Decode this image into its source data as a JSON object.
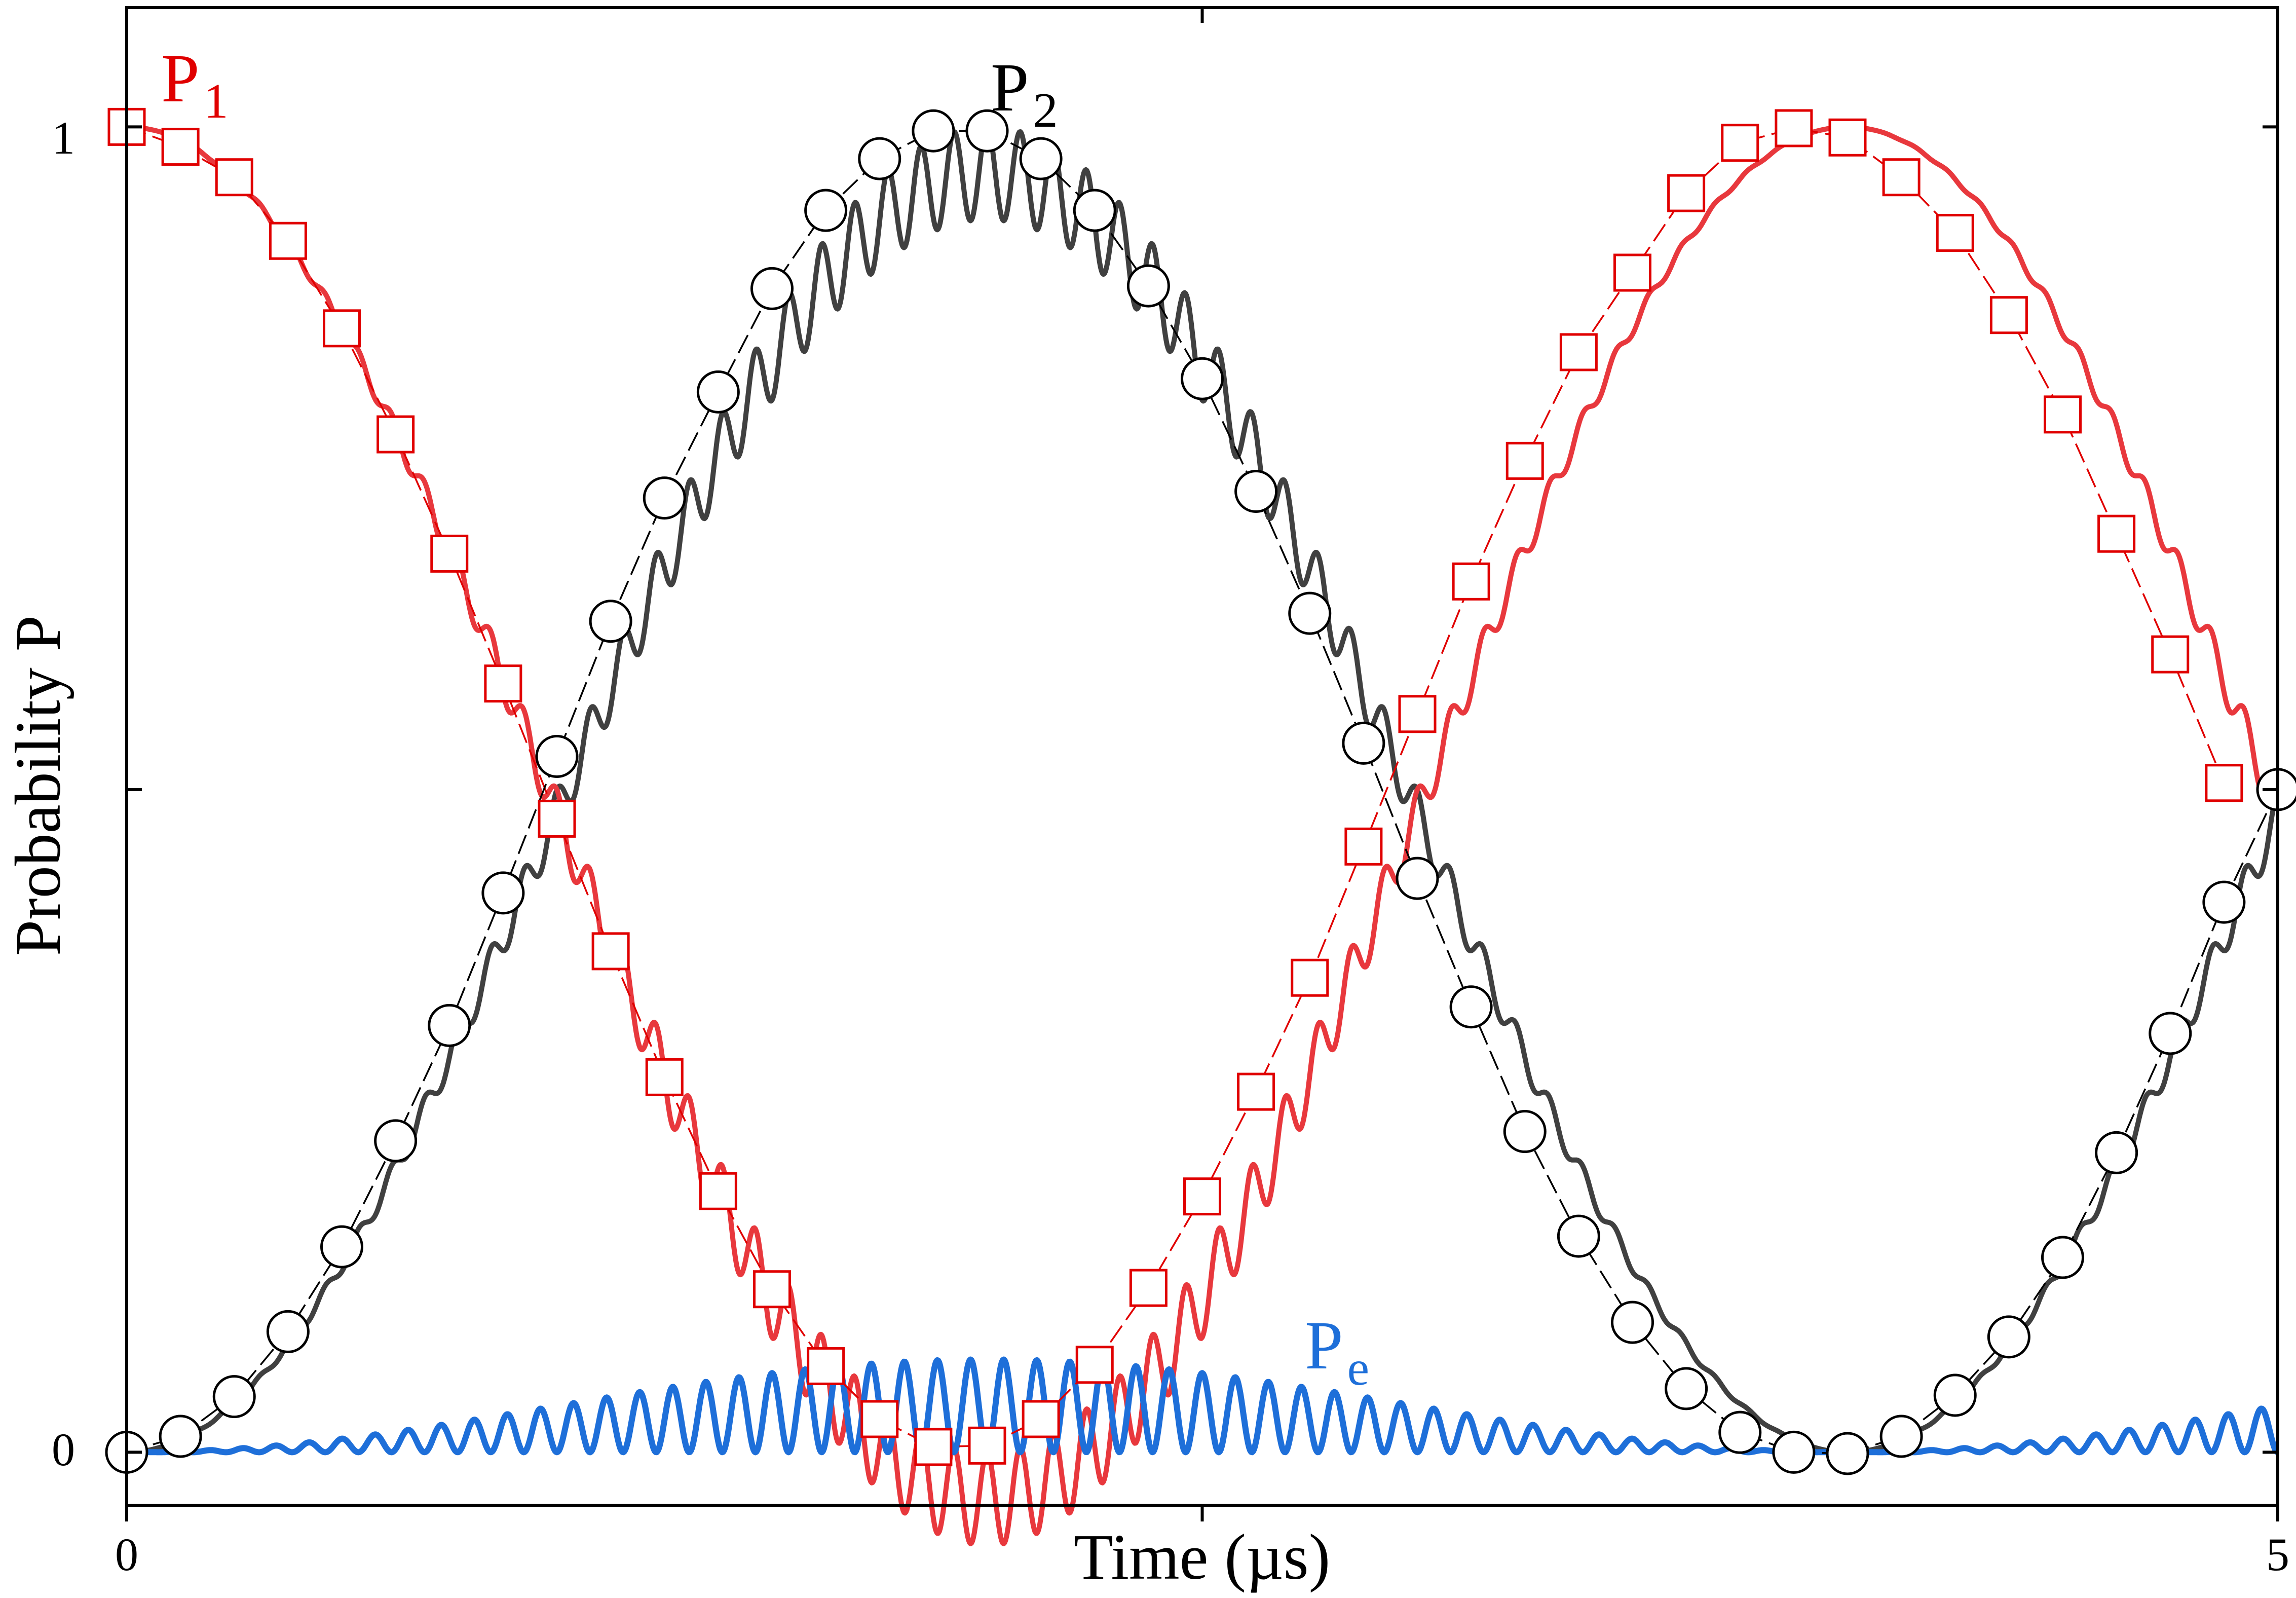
{
  "chart_data": {
    "type": "line",
    "xlabel": "Time   (µs)",
    "ylabel": "Probability P",
    "xlim": [
      0,
      5
    ],
    "ylim": [
      -0.04,
      1.09
    ],
    "xticks": [
      "0",
      "5"
    ],
    "yticks": [
      "0",
      "1"
    ],
    "grid": false,
    "colors": {
      "P1": "#e8383d",
      "P2": "#404040",
      "Pe": "#1e6fd9",
      "P1_markers": "#e00000",
      "P2_markers": "#000000"
    },
    "series_labels": {
      "P1": {
        "main": "P",
        "sub": "1"
      },
      "P2": {
        "main": "P",
        "sub": "2"
      },
      "Pe": {
        "main": "P",
        "sub": "e"
      }
    },
    "curve_model": {
      "rabi_period_us": 8.0,
      "p1_phase_us": 0,
      "fast_oscillations_per_us": 13,
      "pe_peak": 0.07,
      "samples": 2200
    },
    "series": [
      {
        "name": "P1",
        "style": "open-squares",
        "x": [
          0,
          0.125,
          0.25,
          0.375,
          0.5,
          0.625,
          0.75,
          0.875,
          1.0,
          1.125,
          1.25,
          1.375,
          1.5,
          1.625,
          1.75,
          1.875,
          2.0,
          2.125,
          2.25,
          2.375,
          2.5,
          2.625,
          2.75,
          2.875,
          3.0,
          3.125,
          3.25,
          3.375,
          3.5,
          3.625,
          3.75,
          3.875,
          4.0,
          4.125,
          4.25,
          4.375,
          4.5,
          4.625,
          4.75,
          4.875
        ],
        "y": [
          1.0,
          0.985,
          0.962,
          0.914,
          0.848,
          0.768,
          0.678,
          0.58,
          0.478,
          0.378,
          0.283,
          0.197,
          0.123,
          0.065,
          0.025,
          0.004,
          0.005,
          0.025,
          0.066,
          0.124,
          0.193,
          0.272,
          0.358,
          0.457,
          0.557,
          0.657,
          0.748,
          0.83,
          0.89,
          0.95,
          0.988,
          0.999,
          0.992,
          0.962,
          0.92,
          0.858,
          0.783,
          0.693,
          0.602,
          0.505
        ]
      },
      {
        "name": "P2",
        "style": "open-circles",
        "x": [
          0,
          0.125,
          0.25,
          0.375,
          0.5,
          0.625,
          0.75,
          0.875,
          1.0,
          1.125,
          1.25,
          1.375,
          1.5,
          1.625,
          1.75,
          1.875,
          2.0,
          2.125,
          2.25,
          2.375,
          2.5,
          2.625,
          2.75,
          2.875,
          3.0,
          3.125,
          3.25,
          3.375,
          3.5,
          3.625,
          3.75,
          3.875,
          4.0,
          4.125,
          4.25,
          4.375,
          4.5,
          4.625,
          4.75,
          4.875,
          5.0
        ],
        "y": [
          0.0,
          0.012,
          0.042,
          0.091,
          0.155,
          0.235,
          0.322,
          0.422,
          0.525,
          0.627,
          0.72,
          0.8,
          0.878,
          0.937,
          0.976,
          0.997,
          0.997,
          0.976,
          0.937,
          0.88,
          0.81,
          0.725,
          0.633,
          0.535,
          0.433,
          0.336,
          0.242,
          0.163,
          0.098,
          0.048,
          0.015,
          0.0,
          -0.001,
          0.012,
          0.043,
          0.087,
          0.147,
          0.226,
          0.316,
          0.415,
          0.5
        ]
      }
    ]
  }
}
